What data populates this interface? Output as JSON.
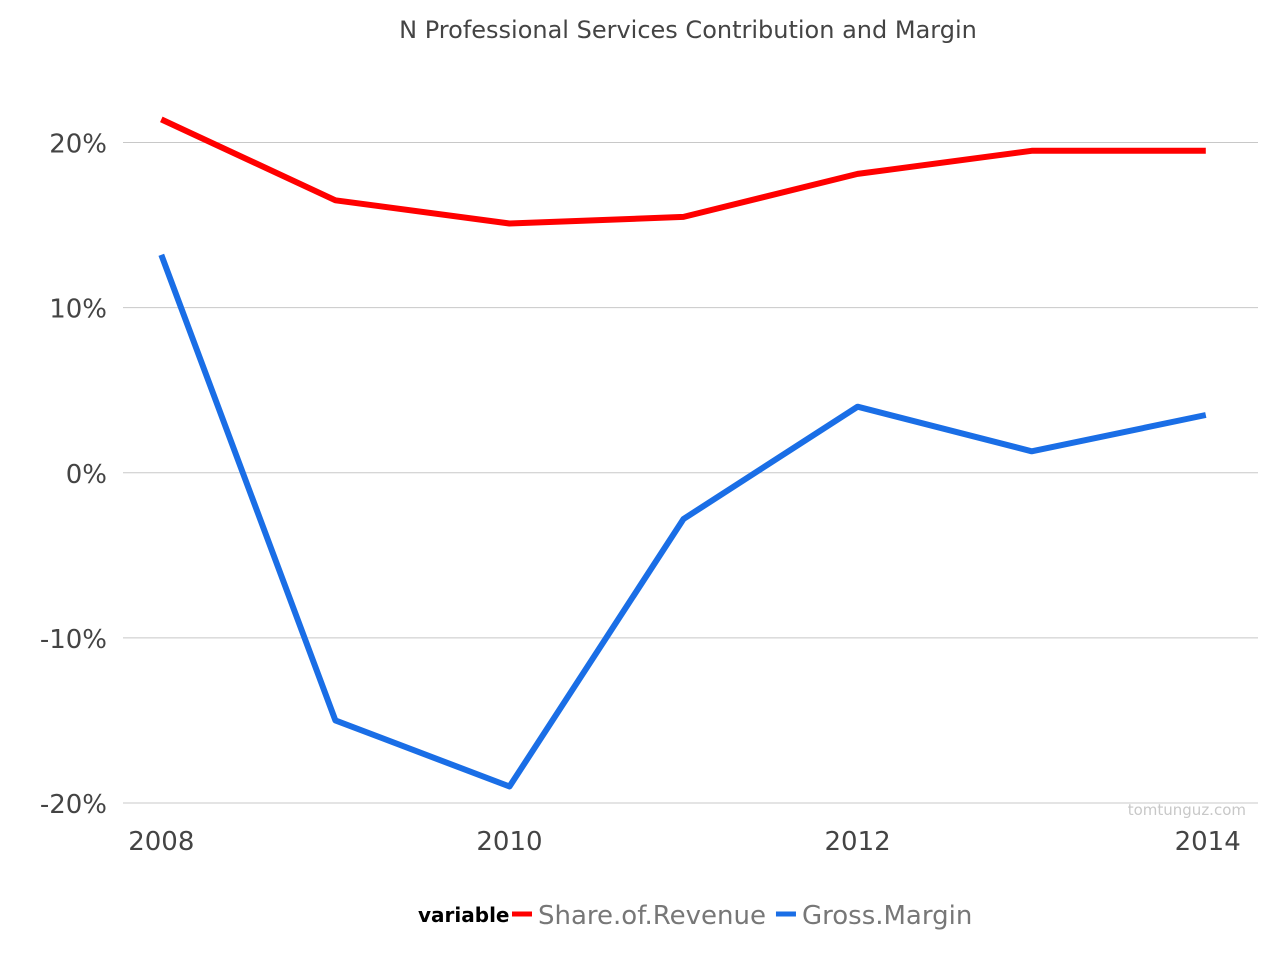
{
  "chart_data": {
    "type": "line",
    "title": "N Professional Services Contribution and Margin",
    "xlabel": "",
    "ylabel": "",
    "x": [
      2008,
      2009,
      2010,
      2011,
      2012,
      2013,
      2014
    ],
    "x_ticks": [
      2008,
      2010,
      2012,
      2014
    ],
    "x_tick_labels": [
      "2008",
      "2010",
      "2012",
      "2014"
    ],
    "xlim": [
      2007.78,
      2014.3
    ],
    "ylim": [
      -20,
      25
    ],
    "y_ticks": [
      -20,
      -10,
      0,
      10,
      20
    ],
    "y_tick_labels": [
      "-20%",
      "-10%",
      "0%",
      "10%",
      "20%"
    ],
    "grid": true,
    "legend": {
      "title": "variable",
      "position": "bottom"
    },
    "series": [
      {
        "name": "Share.of.Revenue",
        "color": "#ff0000",
        "values": [
          21.4,
          16.5,
          15.1,
          15.5,
          18.1,
          19.5,
          19.5
        ]
      },
      {
        "name": "Gross.Margin",
        "color": "#1a6ee6",
        "values": [
          13.2,
          -15.0,
          -19.0,
          -2.8,
          4.0,
          1.3,
          3.5
        ]
      }
    ],
    "watermark": "tomtunguz.com"
  }
}
